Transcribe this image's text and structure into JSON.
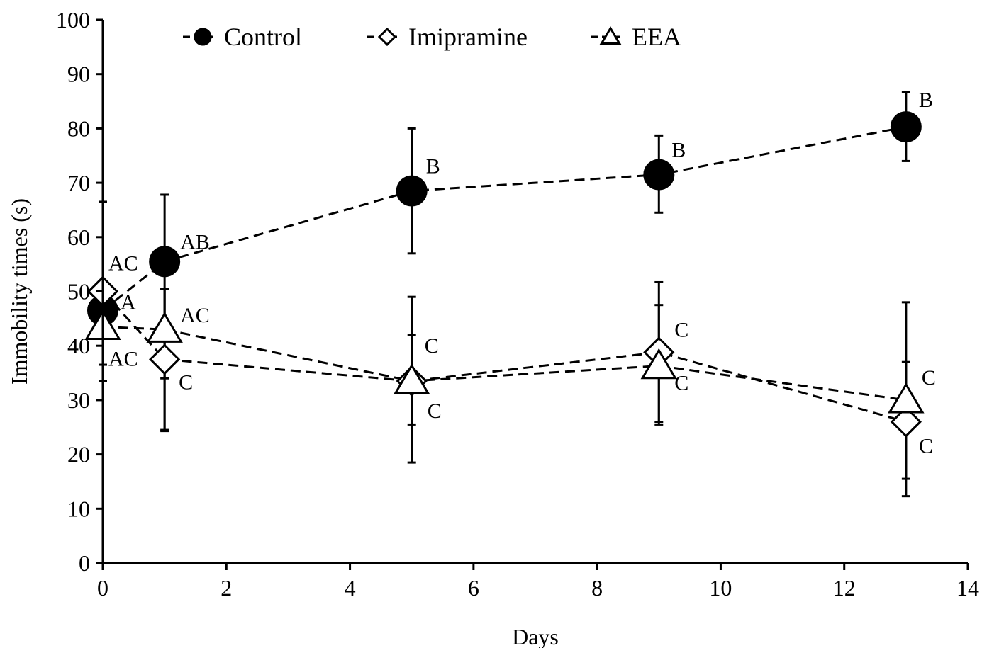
{
  "chart_data": {
    "type": "line",
    "title": "",
    "xlabel": "Days",
    "ylabel": "Immobility times (s)",
    "xlim": [
      0,
      14
    ],
    "ylim": [
      0,
      100
    ],
    "xticks": [
      0,
      2,
      4,
      6,
      8,
      10,
      12,
      14
    ],
    "yticks": [
      0,
      10,
      20,
      30,
      40,
      50,
      60,
      70,
      80,
      90,
      100
    ],
    "grid": false,
    "legend_position": "top",
    "x": [
      0,
      1,
      5,
      9,
      13
    ],
    "series": [
      {
        "name": "Control",
        "marker": "filled-circle",
        "line_style": "dashed",
        "values": [
          46.5,
          55.5,
          68.5,
          71.5,
          80.3
        ],
        "error": [
          [
            46.5,
            46.5
          ],
          [
            24.5,
            67.8
          ],
          [
            57.0,
            80.0
          ],
          [
            64.5,
            78.7
          ],
          [
            74.0,
            86.7
          ]
        ],
        "labels": [
          "A",
          "AB",
          "B",
          "B",
          "B"
        ]
      },
      {
        "name": "Imipramine",
        "marker": "open-diamond",
        "line_style": "dashed",
        "values": [
          50.0,
          37.5,
          33.5,
          38.8,
          26.0
        ],
        "error": [
          [
            33.5,
            66.5
          ],
          [
            24.3,
            50.5
          ],
          [
            18.5,
            49.0
          ],
          [
            26.0,
            51.7
          ],
          [
            12.3,
            37.0
          ]
        ],
        "labels": [
          "AC",
          "C",
          "C",
          "C",
          "C"
        ]
      },
      {
        "name": "EEA",
        "marker": "open-triangle",
        "line_style": "dashed",
        "values": [
          43.5,
          43.0,
          33.5,
          36.3,
          30.0
        ],
        "error": [
          [
            36.5,
            50.5
          ],
          [
            34.0,
            50.5
          ],
          [
            25.5,
            42.0
          ],
          [
            25.5,
            47.5
          ],
          [
            15.5,
            48.0
          ]
        ],
        "labels": [
          "AC",
          "AC",
          "C",
          "C",
          "C"
        ]
      }
    ]
  }
}
